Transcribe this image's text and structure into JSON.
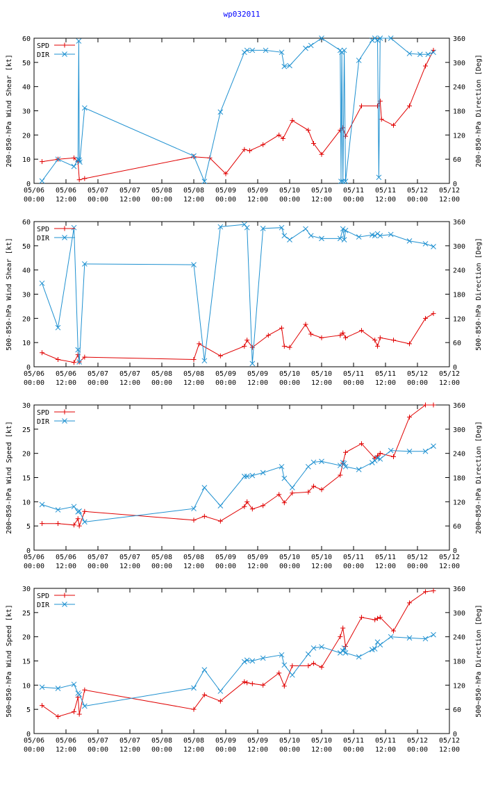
{
  "page_title": "wp032011",
  "colors": {
    "spd": "#e00000",
    "dir": "#1e90d0",
    "title": "#0000ff",
    "axis": "#000000"
  },
  "x_ticks": [
    {
      "date": "05/06",
      "time": "00:00"
    },
    {
      "date": "05/06",
      "time": "12:00"
    },
    {
      "date": "05/07",
      "time": "00:00"
    },
    {
      "date": "05/07",
      "time": "12:00"
    },
    {
      "date": "05/08",
      "time": "00:00"
    },
    {
      "date": "05/08",
      "time": "12:00"
    },
    {
      "date": "05/09",
      "time": "00:00"
    },
    {
      "date": "05/09",
      "time": "12:00"
    },
    {
      "date": "05/10",
      "time": "00:00"
    },
    {
      "date": "05/10",
      "time": "12:00"
    },
    {
      "date": "05/11",
      "time": "00:00"
    },
    {
      "date": "05/11",
      "time": "12:00"
    },
    {
      "date": "05/12",
      "time": "00:00"
    },
    {
      "date": "05/12",
      "time": "12:00"
    }
  ],
  "chart_data": [
    {
      "type": "line",
      "title": "wp032011",
      "ylabel": "200-850-hPa Wind Shear [kt]",
      "y2label": "200-850-hPa Direction [Deg]",
      "ylim": [
        0,
        60
      ],
      "y2lim": [
        0,
        360
      ],
      "yticks": [
        0,
        10,
        20,
        30,
        40,
        50,
        60
      ],
      "y2ticks": [
        0,
        60,
        120,
        180,
        240,
        300,
        360
      ],
      "xlim_hours": [
        0,
        156
      ],
      "legend": [
        "SPD",
        "DIR"
      ],
      "series": [
        {
          "name": "SPD",
          "axis": "left",
          "x": [
            3,
            9,
            15,
            16.5,
            17,
            19,
            60,
            66,
            72,
            79,
            81,
            86,
            92,
            93.5,
            97,
            103,
            105,
            108,
            115,
            116,
            117,
            123,
            129,
            130,
            130.5,
            135,
            141,
            147,
            150
          ],
          "y": [
            9,
            10,
            10.5,
            9,
            1.5,
            2,
            11,
            10.5,
            4,
            14,
            13.5,
            16,
            20,
            18.5,
            26,
            22,
            16.5,
            12,
            22,
            23,
            19.5,
            32,
            32,
            34,
            26.5,
            24,
            32,
            48.5,
            55
          ]
        },
        {
          "name": "DIR",
          "axis": "right",
          "x": [
            3,
            9,
            15,
            16.5,
            16.8,
            17,
            17.2,
            19,
            60,
            64,
            70,
            79,
            80,
            82,
            87,
            93,
            94,
            96,
            102,
            104,
            108,
            115,
            115.3,
            115.6,
            116,
            116.5,
            117,
            122,
            127,
            128,
            129,
            129.5,
            130,
            134,
            141,
            145,
            148,
            150
          ],
          "y": [
            6,
            60,
            42,
            60,
            353,
            58,
            53,
            187,
            68,
            5,
            177,
            325,
            330,
            330,
            330,
            325,
            290,
            292,
            335,
            342,
            360,
            330,
            5,
            325,
            5,
            330,
            5,
            305,
            355,
            360,
            355,
            15,
            360,
            360,
            322,
            320,
            320,
            325
          ]
        }
      ]
    },
    {
      "type": "line",
      "ylabel": "500-850-hPa Wind Shear [kt]",
      "y2label": "500-850-hPa Direction [Deg]",
      "ylim": [
        0,
        60
      ],
      "y2lim": [
        0,
        360
      ],
      "yticks": [
        0,
        10,
        20,
        30,
        40,
        50,
        60
      ],
      "y2ticks": [
        0,
        60,
        120,
        180,
        240,
        300,
        360
      ],
      "xlim_hours": [
        0,
        156
      ],
      "legend": [
        "SPD",
        "DIR"
      ],
      "series": [
        {
          "name": "SPD",
          "axis": "left",
          "x": [
            3,
            9,
            15,
            16.5,
            17,
            19,
            60,
            62,
            70,
            79,
            80,
            82,
            88,
            93,
            94,
            96,
            102,
            104,
            108,
            115,
            116,
            117,
            123,
            128,
            129,
            130,
            135,
            141,
            147,
            150
          ],
          "y": [
            5.8,
            3,
            1.8,
            5,
            2,
            4,
            3,
            9.5,
            4.5,
            8.5,
            11,
            8,
            13,
            16,
            8.5,
            8,
            17.5,
            13.5,
            12,
            13,
            14,
            12,
            15,
            11,
            8.5,
            12,
            11,
            9.5,
            20,
            22
          ]
        },
        {
          "name": "DIR",
          "axis": "right",
          "x": [
            3,
            9,
            15,
            16.5,
            17,
            19,
            60,
            64,
            70,
            79,
            80,
            82,
            86,
            93,
            94,
            96,
            102,
            104,
            108,
            115,
            116,
            116.5,
            117,
            122,
            127,
            128,
            129,
            130,
            134,
            141,
            147,
            150
          ],
          "y": [
            207,
            97,
            345,
            42,
            12,
            255,
            253,
            15,
            347,
            353,
            345,
            8,
            343,
            345,
            325,
            315,
            342,
            325,
            318,
            318,
            342,
            315,
            338,
            322,
            327,
            325,
            330,
            325,
            328,
            312,
            305,
            298
          ]
        }
      ]
    },
    {
      "type": "line",
      "ylabel": "200~850-hPa Wind Speed [kt]",
      "y2label": "200~850-hPa Direction [Deg]",
      "ylim": [
        0,
        30
      ],
      "y2lim": [
        0,
        360
      ],
      "yticks": [
        0,
        5,
        10,
        15,
        20,
        25,
        30
      ],
      "y2ticks": [
        0,
        60,
        120,
        180,
        240,
        300,
        360
      ],
      "xlim_hours": [
        0,
        156
      ],
      "legend": [
        "SPD",
        "DIR"
      ],
      "series": [
        {
          "name": "SPD",
          "axis": "left",
          "x": [
            3,
            9,
            15,
            16.5,
            17,
            19,
            60,
            64,
            70,
            79,
            80,
            82,
            86,
            92,
            94,
            97,
            103,
            105,
            108,
            115,
            116,
            117,
            123,
            128,
            129,
            130,
            135,
            141,
            147,
            150
          ],
          "y": [
            5.5,
            5.5,
            5.2,
            6.5,
            5,
            8,
            6.2,
            7,
            6,
            9,
            10,
            8.5,
            9.2,
            11.5,
            9.8,
            11.8,
            12,
            13.2,
            12.5,
            15.5,
            18,
            20.2,
            22,
            19,
            19.5,
            20,
            19.3,
            27.5,
            30,
            30
          ]
        },
        {
          "name": "DIR",
          "axis": "right",
          "x": [
            3,
            9,
            15,
            16.5,
            17,
            19,
            60,
            64,
            70,
            79,
            80,
            82,
            86,
            93,
            94,
            97,
            103,
            105,
            108,
            115,
            116,
            116.5,
            117,
            122,
            127,
            128,
            129,
            130,
            134,
            141,
            147,
            150
          ],
          "y": [
            113,
            100,
            108,
            95,
            97,
            70,
            103,
            155,
            110,
            183,
            183,
            185,
            192,
            207,
            178,
            155,
            207,
            218,
            220,
            210,
            217,
            215,
            207,
            200,
            217,
            222,
            228,
            226,
            247,
            245,
            245,
            258
          ]
        }
      ]
    },
    {
      "type": "line",
      "ylabel": "500~850-hPa Wind Speed [kt]",
      "y2label": "500~850-hPa Direction [Deg]",
      "ylim": [
        0,
        30
      ],
      "y2lim": [
        0,
        360
      ],
      "yticks": [
        0,
        5,
        10,
        15,
        20,
        25,
        30
      ],
      "y2ticks": [
        0,
        60,
        120,
        180,
        240,
        300,
        360
      ],
      "xlim_hours": [
        0,
        156
      ],
      "legend": [
        "SPD",
        "DIR"
      ],
      "series": [
        {
          "name": "SPD",
          "axis": "left",
          "x": [
            3,
            9,
            15,
            16.5,
            17,
            19,
            60,
            64,
            70,
            79,
            80,
            82,
            86,
            92,
            94,
            97,
            103,
            105,
            108,
            115,
            116,
            117,
            123,
            128,
            129,
            130,
            135,
            141,
            147,
            150
          ],
          "y": [
            5.8,
            3.5,
            4.5,
            7.5,
            4,
            9,
            5,
            8,
            6.7,
            10.7,
            10.5,
            10.3,
            10,
            12.5,
            9.8,
            14,
            14,
            14.5,
            13.7,
            20,
            21.8,
            18,
            24,
            23.5,
            23.8,
            24,
            21.2,
            27,
            29.3,
            29.5
          ]
        },
        {
          "name": "DIR",
          "axis": "right",
          "x": [
            3,
            9,
            15,
            16.5,
            17,
            19,
            60,
            64,
            70,
            79,
            80,
            82,
            86,
            93,
            94,
            97,
            103,
            105,
            108,
            115,
            116,
            116.5,
            117,
            122,
            127,
            128,
            129,
            130,
            134,
            141,
            147,
            150
          ],
          "y": [
            115,
            112,
            122,
            100,
            97,
            68,
            113,
            158,
            105,
            178,
            182,
            180,
            187,
            195,
            170,
            145,
            197,
            212,
            215,
            200,
            205,
            212,
            200,
            190,
            208,
            210,
            227,
            220,
            240,
            237,
            235,
            245
          ]
        }
      ]
    }
  ]
}
